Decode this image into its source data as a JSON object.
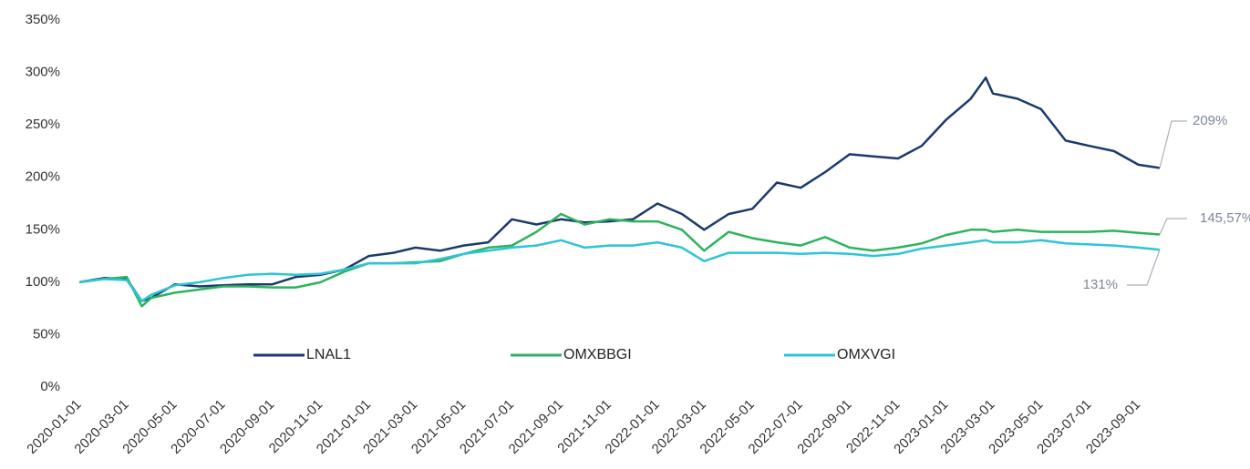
{
  "chart_data": {
    "type": "line",
    "x": [
      "2020-01-01",
      "2020-02-01",
      "2020-03-01",
      "2020-03-20",
      "2020-04-01",
      "2020-05-01",
      "2020-06-01",
      "2020-07-01",
      "2020-08-01",
      "2020-09-01",
      "2020-10-01",
      "2020-11-01",
      "2020-12-01",
      "2021-01-01",
      "2021-02-01",
      "2021-03-01",
      "2021-04-01",
      "2021-05-01",
      "2021-06-01",
      "2021-07-01",
      "2021-08-01",
      "2021-09-01",
      "2021-10-01",
      "2021-11-01",
      "2021-12-01",
      "2022-01-01",
      "2022-02-01",
      "2022-03-01",
      "2022-04-01",
      "2022-05-01",
      "2022-06-01",
      "2022-07-01",
      "2022-08-01",
      "2022-09-01",
      "2022-10-01",
      "2022-11-01",
      "2022-12-01",
      "2023-01-01",
      "2023-02-01",
      "2023-02-20",
      "2023-03-01",
      "2023-04-01",
      "2023-05-01",
      "2023-06-01",
      "2023-07-01",
      "2023-08-01",
      "2023-09-01",
      "2023-09-28"
    ],
    "series": [
      {
        "name": "LNAL1",
        "color": "#1b3a6b",
        "end_label": "209%",
        "values": [
          100,
          104,
          103,
          82,
          85,
          98,
          96,
          97,
          98,
          98,
          105,
          107,
          112,
          125,
          128,
          133,
          130,
          135,
          138,
          160,
          155,
          160,
          157,
          158,
          160,
          175,
          165,
          150,
          165,
          170,
          195,
          190,
          205,
          222,
          220,
          218,
          230,
          255,
          275,
          295,
          280,
          275,
          265,
          235,
          230,
          225,
          212,
          209
        ]
      },
      {
        "name": "OMXBBGI",
        "color": "#2db35d",
        "end_label": "145,57%",
        "values": [
          100,
          103,
          105,
          77,
          85,
          90,
          93,
          96,
          96,
          95,
          95,
          100,
          110,
          118,
          118,
          119,
          120,
          127,
          133,
          135,
          148,
          165,
          155,
          160,
          158,
          158,
          150,
          130,
          148,
          142,
          138,
          135,
          143,
          133,
          130,
          133,
          137,
          145,
          150,
          150,
          148,
          150,
          148,
          148,
          148,
          149,
          147,
          145.57
        ]
      },
      {
        "name": "OMXVGI",
        "color": "#2ec4d6",
        "end_label": "131%",
        "values": [
          100,
          103,
          102,
          82,
          88,
          97,
          100,
          104,
          107,
          108,
          107,
          108,
          112,
          118,
          118,
          118,
          122,
          127,
          130,
          133,
          135,
          140,
          133,
          135,
          135,
          138,
          133,
          120,
          128,
          128,
          128,
          127,
          128,
          127,
          125,
          127,
          132,
          135,
          138,
          140,
          138,
          138,
          140,
          137,
          136,
          135,
          133,
          131
        ]
      }
    ],
    "xlim": [
      "2020-01-01",
      "2023-09-28"
    ],
    "xticks": [
      "2020-01-01",
      "2020-03-01",
      "2020-05-01",
      "2020-07-01",
      "2020-09-01",
      "2020-11-01",
      "2021-01-01",
      "2021-03-01",
      "2021-05-01",
      "2021-07-01",
      "2021-09-01",
      "2021-11-01",
      "2022-01-01",
      "2022-03-01",
      "2022-05-01",
      "2022-07-01",
      "2022-09-01",
      "2022-11-01",
      "2023-01-01",
      "2023-03-01",
      "2023-05-01",
      "2023-07-01",
      "2023-09-01"
    ],
    "ylim": [
      0,
      350
    ],
    "yticks": [
      {
        "value": 0,
        "label": "0%"
      },
      {
        "value": 50,
        "label": "50%"
      },
      {
        "value": 100,
        "label": "100%"
      },
      {
        "value": 150,
        "label": "150%"
      },
      {
        "value": 200,
        "label": "200%"
      },
      {
        "value": 250,
        "label": "250%"
      },
      {
        "value": 300,
        "label": "300%"
      },
      {
        "value": 350,
        "label": "350%"
      }
    ],
    "grid": false,
    "legend_position": "bottom"
  }
}
